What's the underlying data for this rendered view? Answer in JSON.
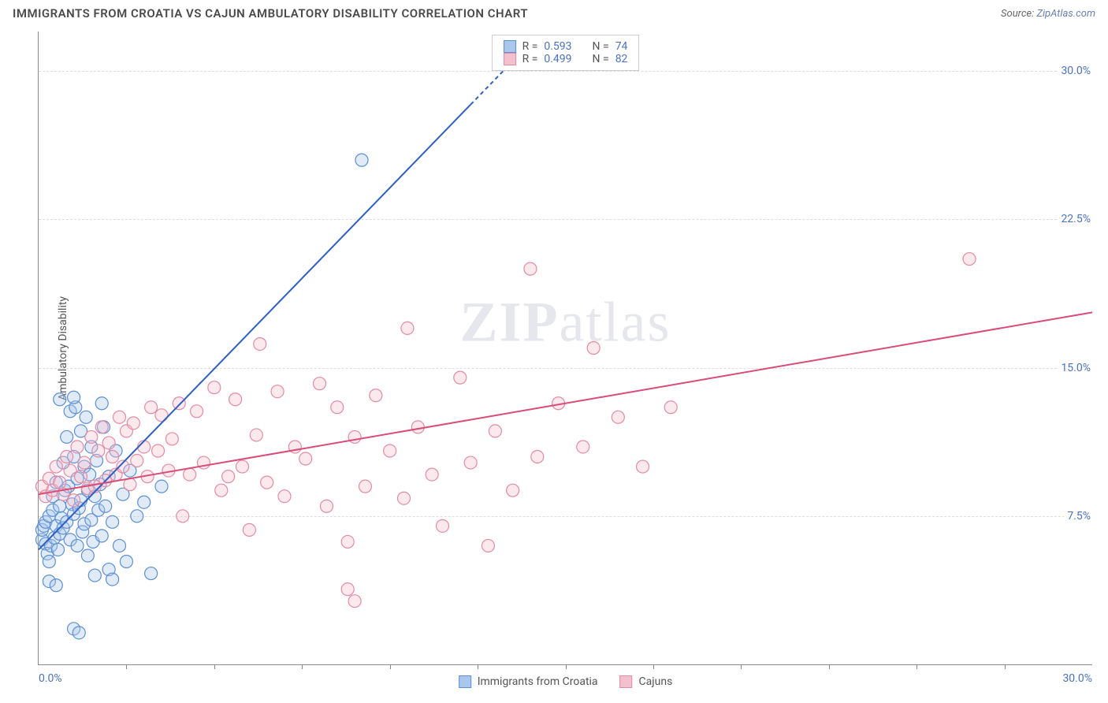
{
  "header": {
    "title": "IMMIGRANTS FROM CROATIA VS CAJUN AMBULATORY DISABILITY CORRELATION CHART",
    "source_prefix": "Source: ",
    "source_name": "ZipAtlas.com"
  },
  "chart": {
    "type": "scatter",
    "background_color": "#ffffff",
    "grid_color": "#dddddd",
    "axis_color": "#888888",
    "tick_label_color": "#4a72c4",
    "label_color": "#555555",
    "ylabel": "Ambulatory Disability",
    "label_fontsize": 14,
    "tick_fontsize": 14,
    "xlim": [
      0,
      30
    ],
    "ylim": [
      0,
      32
    ],
    "x_tick_labels": {
      "min": "0.0%",
      "max": "30.0%"
    },
    "y_ticks": [
      7.5,
      15.0,
      22.5,
      30.0
    ],
    "y_tick_labels": [
      "7.5%",
      "15.0%",
      "22.5%",
      "30.0%"
    ],
    "x_minor_tick_step": 2.5,
    "marker_radius": 8,
    "marker_stroke_width": 1.2,
    "marker_fill_opacity": 0.35,
    "watermark_text_bold": "ZIP",
    "watermark_text_rest": "atlas",
    "watermark_color": "rgba(150,160,180,0.25)",
    "series": [
      {
        "key": "croatia",
        "name": "Immigrants from Croatia",
        "color_fill": "#a9c6ec",
        "color_stroke": "#5b8fd6",
        "trend_color": "#2d5fc4",
        "R": "0.593",
        "N": "74",
        "trend": {
          "x1": 0,
          "y1": 5.8,
          "x2": 13.5,
          "y2": 30.5,
          "dash_from_x": 12.3
        },
        "points": [
          [
            0.1,
            6.3
          ],
          [
            0.1,
            6.8
          ],
          [
            0.15,
            7.0
          ],
          [
            0.2,
            7.2
          ],
          [
            0.2,
            6.1
          ],
          [
            0.25,
            5.6
          ],
          [
            0.3,
            5.2
          ],
          [
            0.3,
            7.5
          ],
          [
            0.35,
            6.0
          ],
          [
            0.4,
            7.8
          ],
          [
            0.4,
            8.5
          ],
          [
            0.45,
            6.4
          ],
          [
            0.5,
            7.0
          ],
          [
            0.5,
            9.2
          ],
          [
            0.55,
            5.8
          ],
          [
            0.6,
            6.6
          ],
          [
            0.6,
            8.0
          ],
          [
            0.65,
            7.4
          ],
          [
            0.7,
            10.2
          ],
          [
            0.7,
            6.9
          ],
          [
            0.75,
            8.8
          ],
          [
            0.8,
            7.2
          ],
          [
            0.8,
            11.5
          ],
          [
            0.85,
            9.0
          ],
          [
            0.9,
            6.3
          ],
          [
            0.9,
            12.8
          ],
          [
            0.95,
            8.1
          ],
          [
            1.0,
            7.6
          ],
          [
            1.0,
            10.5
          ],
          [
            1.05,
            13.0
          ],
          [
            1.1,
            6.0
          ],
          [
            1.1,
            9.4
          ],
          [
            1.15,
            7.9
          ],
          [
            1.2,
            11.8
          ],
          [
            1.2,
            8.3
          ],
          [
            1.25,
            6.7
          ],
          [
            1.3,
            10.0
          ],
          [
            1.3,
            7.1
          ],
          [
            1.35,
            12.5
          ],
          [
            1.4,
            8.8
          ],
          [
            1.4,
            5.5
          ],
          [
            1.45,
            9.6
          ],
          [
            1.5,
            7.3
          ],
          [
            1.5,
            11.0
          ],
          [
            1.55,
            6.2
          ],
          [
            1.6,
            8.5
          ],
          [
            1.65,
            10.3
          ],
          [
            1.7,
            7.8
          ],
          [
            1.75,
            9.1
          ],
          [
            1.8,
            6.5
          ],
          [
            1.85,
            12.0
          ],
          [
            1.9,
            8.0
          ],
          [
            2.0,
            4.8
          ],
          [
            2.0,
            9.5
          ],
          [
            2.1,
            7.2
          ],
          [
            2.2,
            10.8
          ],
          [
            2.3,
            6.0
          ],
          [
            2.4,
            8.6
          ],
          [
            2.5,
            5.2
          ],
          [
            2.6,
            9.8
          ],
          [
            2.8,
            7.5
          ],
          [
            3.0,
            8.2
          ],
          [
            3.2,
            4.6
          ],
          [
            3.5,
            9.0
          ],
          [
            1.0,
            1.8
          ],
          [
            1.15,
            1.6
          ],
          [
            0.3,
            4.2
          ],
          [
            0.5,
            4.0
          ],
          [
            1.6,
            4.5
          ],
          [
            2.1,
            4.3
          ],
          [
            9.2,
            25.5
          ],
          [
            1.0,
            13.5
          ],
          [
            1.8,
            13.2
          ],
          [
            0.6,
            13.4
          ]
        ]
      },
      {
        "key": "cajuns",
        "name": "Cajuns",
        "color_fill": "#f5c0cd",
        "color_stroke": "#e58aa3",
        "trend_color": "#d94c77",
        "R": "0.499",
        "N": "82",
        "trend": {
          "x1": 0,
          "y1": 8.6,
          "x2": 30,
          "y2": 17.8,
          "dash_from_x": null
        },
        "points": [
          [
            0.1,
            9.0
          ],
          [
            0.2,
            8.5
          ],
          [
            0.3,
            9.4
          ],
          [
            0.4,
            8.8
          ],
          [
            0.5,
            10.0
          ],
          [
            0.6,
            9.2
          ],
          [
            0.7,
            8.6
          ],
          [
            0.8,
            10.5
          ],
          [
            0.9,
            9.8
          ],
          [
            1.0,
            8.3
          ],
          [
            1.1,
            11.0
          ],
          [
            1.2,
            9.5
          ],
          [
            1.3,
            10.2
          ],
          [
            1.4,
            8.9
          ],
          [
            1.5,
            11.5
          ],
          [
            1.6,
            9.0
          ],
          [
            1.7,
            10.8
          ],
          [
            1.8,
            12.0
          ],
          [
            1.9,
            9.3
          ],
          [
            2.0,
            11.2
          ],
          [
            2.1,
            10.5
          ],
          [
            2.2,
            9.6
          ],
          [
            2.3,
            12.5
          ],
          [
            2.4,
            10.0
          ],
          [
            2.5,
            11.8
          ],
          [
            2.6,
            9.1
          ],
          [
            2.7,
            12.2
          ],
          [
            2.8,
            10.3
          ],
          [
            3.0,
            11.0
          ],
          [
            3.1,
            9.5
          ],
          [
            3.2,
            13.0
          ],
          [
            3.4,
            10.8
          ],
          [
            3.5,
            12.6
          ],
          [
            3.7,
            9.8
          ],
          [
            3.8,
            11.4
          ],
          [
            4.0,
            13.2
          ],
          [
            4.1,
            7.5
          ],
          [
            4.3,
            9.6
          ],
          [
            4.5,
            12.8
          ],
          [
            4.7,
            10.2
          ],
          [
            5.0,
            14.0
          ],
          [
            5.2,
            8.8
          ],
          [
            5.4,
            9.5
          ],
          [
            5.6,
            13.4
          ],
          [
            5.8,
            10.0
          ],
          [
            6.0,
            6.8
          ],
          [
            6.2,
            11.6
          ],
          [
            6.5,
            9.2
          ],
          [
            6.8,
            13.8
          ],
          [
            7.0,
            8.5
          ],
          [
            7.3,
            11.0
          ],
          [
            7.6,
            10.4
          ],
          [
            8.0,
            14.2
          ],
          [
            8.2,
            8.0
          ],
          [
            8.5,
            13.0
          ],
          [
            8.8,
            6.2
          ],
          [
            9.0,
            11.5
          ],
          [
            9.3,
            9.0
          ],
          [
            9.6,
            13.6
          ],
          [
            10.0,
            10.8
          ],
          [
            10.4,
            8.4
          ],
          [
            10.5,
            17.0
          ],
          [
            10.8,
            12.0
          ],
          [
            11.2,
            9.6
          ],
          [
            11.5,
            7.0
          ],
          [
            12.0,
            14.5
          ],
          [
            12.3,
            10.2
          ],
          [
            12.8,
            6.0
          ],
          [
            13.0,
            11.8
          ],
          [
            13.5,
            8.8
          ],
          [
            14.0,
            20.0
          ],
          [
            14.2,
            10.5
          ],
          [
            14.8,
            13.2
          ],
          [
            15.5,
            11.0
          ],
          [
            15.8,
            16.0
          ],
          [
            16.5,
            12.5
          ],
          [
            17.2,
            10.0
          ],
          [
            18.0,
            13.0
          ],
          [
            6.3,
            16.2
          ],
          [
            8.8,
            3.8
          ],
          [
            9.0,
            3.2
          ],
          [
            26.5,
            20.5
          ]
        ]
      }
    ]
  },
  "legend_top": {
    "r_label": "R =",
    "n_label": "N ="
  }
}
